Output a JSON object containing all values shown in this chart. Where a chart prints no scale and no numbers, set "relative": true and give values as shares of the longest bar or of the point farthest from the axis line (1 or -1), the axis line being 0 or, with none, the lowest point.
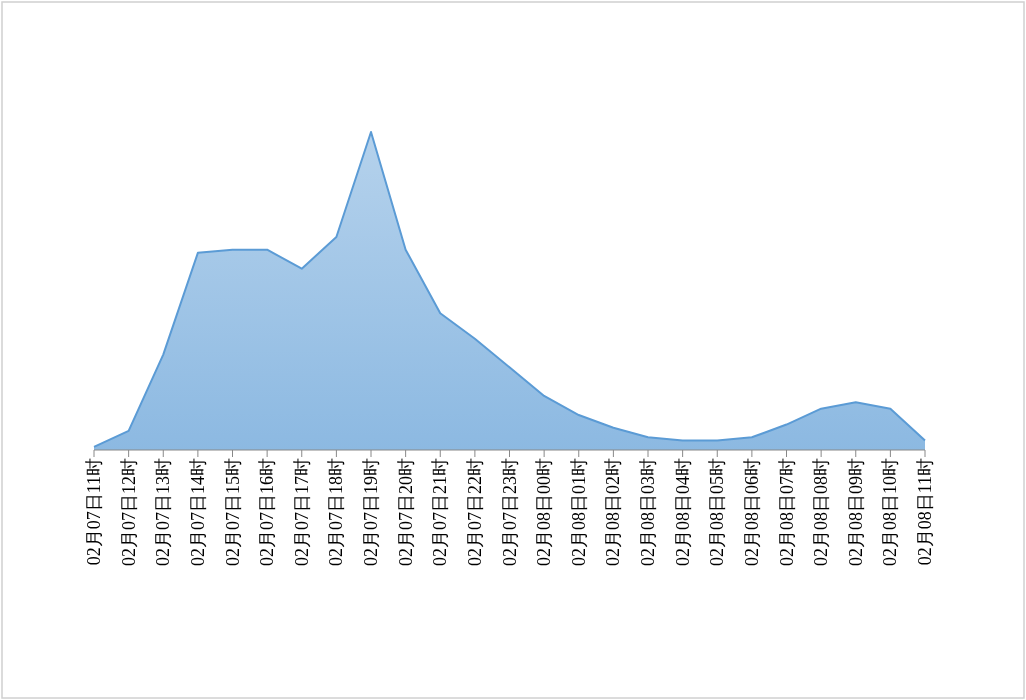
{
  "chart_data": {
    "type": "area",
    "relative": true,
    "categories": [
      "02月07日11时",
      "02月07日12时",
      "02月07日13时",
      "02月07日14时",
      "02月07日15时",
      "02月07日16时",
      "02月07日17时",
      "02月07日18时",
      "02月07日19时",
      "02月07日20时",
      "02月07日21时",
      "02月07日22时",
      "02月07日23时",
      "02月08日00时",
      "02月08日01时",
      "02月08日02时",
      "02月08日03时",
      "02月08日04时",
      "02月08日05时",
      "02月08日06时",
      "02月08日07时",
      "02月08日08时",
      "02月08日09时",
      "02月08日10时",
      "02月08日11时"
    ],
    "series": [
      {
        "color": "#5b9bd5",
        "values": [
          0.01,
          0.06,
          0.3,
          0.62,
          0.63,
          0.63,
          0.57,
          0.67,
          1,
          0.63,
          0.43,
          0.35,
          0.26,
          0.17,
          0.11,
          0.07,
          0.04,
          0.03,
          0.03,
          0.04,
          0.08,
          0.13,
          0.15,
          0.13,
          0.03
        ]
      }
    ],
    "grid": false
  }
}
